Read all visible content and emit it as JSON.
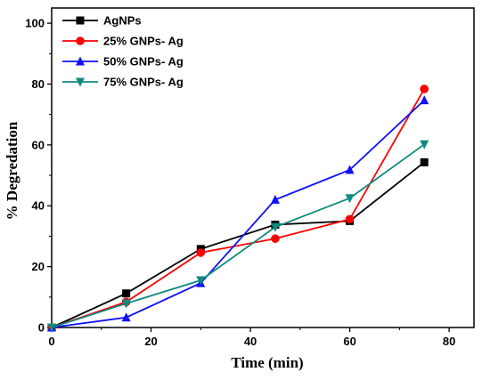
{
  "chart_data": {
    "type": "line",
    "xlabel": "Time (min)",
    "ylabel": "% Degredation",
    "xlim": [
      0,
      85
    ],
    "ylim": [
      0,
      105
    ],
    "xticks": [
      "0",
      "20",
      "40",
      "60",
      "80"
    ],
    "yticks": [
      "0",
      "20",
      "40",
      "60",
      "80",
      "100"
    ],
    "grid": false,
    "legend_position": "top-left",
    "x": [
      0,
      15,
      30,
      45,
      60,
      75
    ],
    "series": [
      {
        "name": "AgNPs",
        "color": "#000000",
        "marker": "square",
        "values": [
          0,
          11.2,
          25.8,
          33.8,
          35.0,
          54.3
        ]
      },
      {
        "name": "25% GNPs- Ag",
        "color": "#ff0000",
        "marker": "circle",
        "values": [
          0,
          8.4,
          24.6,
          29.2,
          35.6,
          78.4
        ]
      },
      {
        "name": "50% GNPs- Ag",
        "color": "#1010ff",
        "marker": "triangle-up",
        "values": [
          0,
          3.3,
          14.6,
          42.0,
          51.8,
          74.7
        ]
      },
      {
        "name": "75% GNPs- Ag",
        "color": "#0f8a7f",
        "marker": "triangle-down",
        "values": [
          0,
          7.9,
          15.5,
          33.0,
          42.5,
          60.2
        ]
      }
    ]
  }
}
